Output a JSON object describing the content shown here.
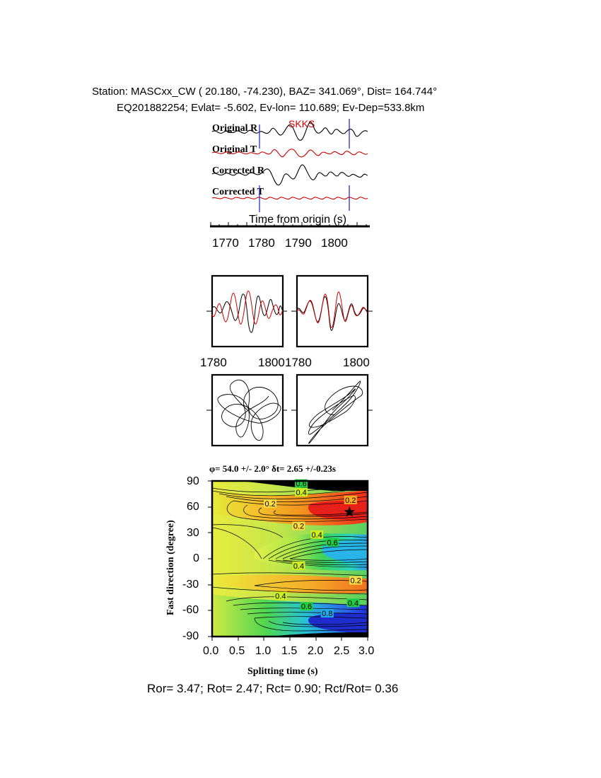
{
  "header": {
    "station_line": "Station: MASCxx_CW (  20.180,  -74.230), BAZ=  341.069°, Dist=  164.744°",
    "event_line": "EQ201882254; Evlat=  -5.602, Ev-lon= 110.689; Ev-Dep=533.8km"
  },
  "colors": {
    "trace_black": "#000000",
    "trace_red": "#cc0000",
    "marker_blue": "#1a1acc",
    "phase_label": "#dd0000"
  },
  "chart_data": [
    {
      "type": "line",
      "panel": "waveforms",
      "series_labels": [
        "Original R",
        "Original T",
        "Corrected R",
        "Corrected T"
      ],
      "phase_label": "SKKS",
      "xlabel": "Time from origin (s)",
      "xticks": [
        1770,
        1780,
        1790,
        1800
      ],
      "xlim": [
        1765,
        1810
      ],
      "window": [
        1778.7,
        1803.2
      ],
      "phase_time": 1784.5
    },
    {
      "type": "line",
      "panel": "particle-window-traces",
      "xticks_left": [
        "1780",
        "1800"
      ],
      "xticks_right": [
        "1780",
        "1800"
      ],
      "xlim": [
        1778,
        1804
      ]
    },
    {
      "type": "line",
      "panel": "particle-motion",
      "description_series": [
        "original",
        "corrected"
      ]
    },
    {
      "type": "heatmap",
      "panel": "energy-grid",
      "title": "φ= 54.0 +/- 2.0° δt= 2.65 +/-0.23s",
      "xlabel": "Splitting time (s)",
      "ylabel": "Fast direction (degree)",
      "xlim": [
        0,
        3
      ],
      "ylim": [
        -90,
        90
      ],
      "xticks": [
        "0.0",
        "0.5",
        "1.0",
        "1.5",
        "2.0",
        "2.5",
        "3.0"
      ],
      "yticks": [
        "90",
        "60",
        "30",
        "0",
        "-30",
        "-60",
        "-90"
      ],
      "best_fit": {
        "dt": 2.65,
        "phi": 54.0
      },
      "contour_labels": [
        {
          "text": "0.6",
          "dt": 1.72,
          "phi": 87,
          "color": "#22cc44"
        },
        {
          "text": "0.4",
          "dt": 1.72,
          "phi": 77,
          "color": "#ccee22"
        },
        {
          "text": "0.2",
          "dt": 1.12,
          "phi": 64,
          "color": "#ffdd44"
        },
        {
          "text": "0.2",
          "dt": 2.67,
          "phi": 68,
          "color": "#ffaa22"
        },
        {
          "text": "0.2",
          "dt": 1.67,
          "phi": 38,
          "color": "#ffdd44"
        },
        {
          "text": "0.4",
          "dt": 2.02,
          "phi": 28,
          "color": "#ccee22"
        },
        {
          "text": "0.6",
          "dt": 2.32,
          "phi": 19,
          "color": "#22cc44"
        },
        {
          "text": "0.4",
          "dt": 1.67,
          "phi": -8,
          "color": "#ccee22"
        },
        {
          "text": "0.2",
          "dt": 2.77,
          "phi": -25,
          "color": "#ffdd44"
        },
        {
          "text": "0.4",
          "dt": 1.32,
          "phi": -43,
          "color": "#ccee22"
        },
        {
          "text": "0.6",
          "dt": 1.82,
          "phi": -55,
          "color": "#22cc44"
        },
        {
          "text": "0.8",
          "dt": 2.22,
          "phi": -63,
          "color": "#22aaee"
        },
        {
          "text": "0.4",
          "dt": 2.72,
          "phi": -51,
          "color": "#22cc44"
        }
      ]
    }
  ],
  "footer": {
    "ratios_line": "Ror= 3.47; Rot= 2.47; Rct= 0.90; Rct/Rot= 0.36"
  }
}
